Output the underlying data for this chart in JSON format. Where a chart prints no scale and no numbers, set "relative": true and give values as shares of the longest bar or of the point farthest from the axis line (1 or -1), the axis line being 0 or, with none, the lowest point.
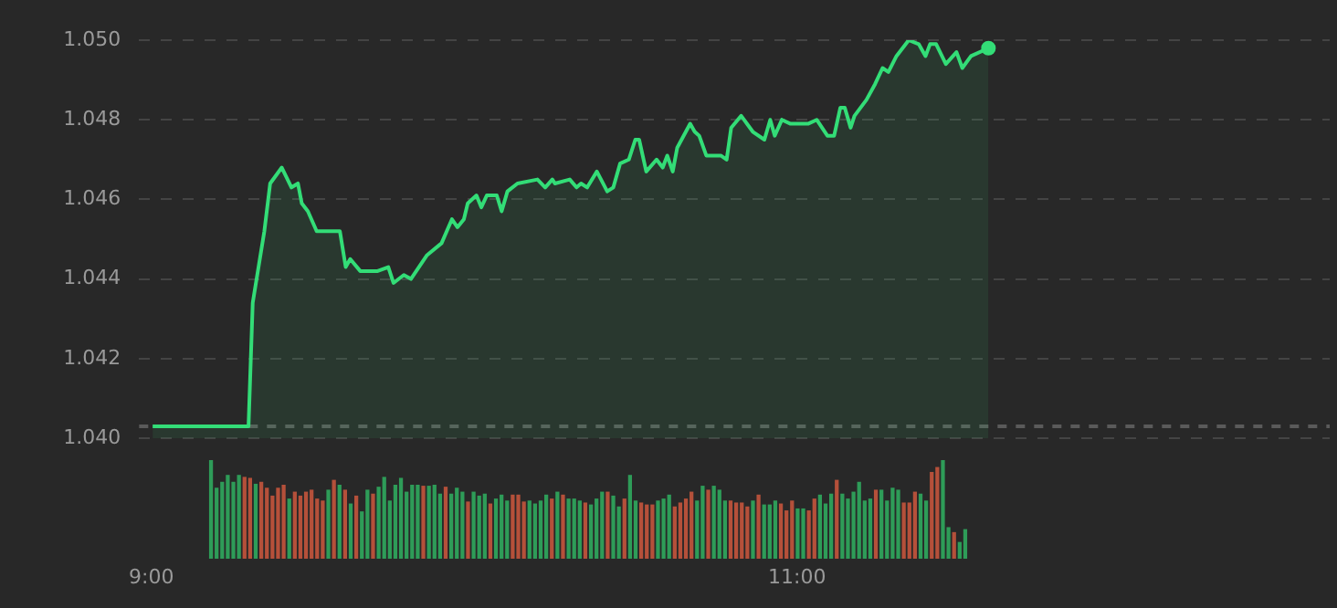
{
  "chart_data": [
    {
      "type": "area",
      "series": [
        {
          "color": "#33dd77",
          "x": [
            9.004,
            9.301,
            9.314,
            9.35,
            9.368,
            9.404,
            9.434,
            9.454,
            9.466,
            9.485,
            9.512,
            9.584,
            9.602,
            9.616,
            9.647,
            9.701,
            9.734,
            9.75,
            9.782,
            9.804,
            9.854,
            9.899,
            9.931,
            9.948,
            9.968,
            9.98,
            10.007,
            10.022,
            10.039,
            10.07,
            10.085,
            10.103,
            10.134,
            10.196,
            10.22,
            10.242,
            10.25,
            10.296,
            10.317,
            10.331,
            10.35,
            10.38,
            10.412,
            10.431,
            10.452,
            10.479,
            10.499,
            10.511,
            10.533,
            10.565,
            10.584,
            10.598,
            10.615,
            10.629,
            10.669,
            10.683,
            10.697,
            10.719,
            10.764,
            10.782,
            10.796,
            10.827,
            10.863,
            10.899,
            10.917,
            10.931,
            10.953,
            10.98,
            11.034,
            11.061,
            11.094,
            11.115,
            11.134,
            11.148,
            11.166,
            11.178,
            11.215,
            11.242,
            11.265,
            11.283,
            11.308,
            11.346,
            11.377,
            11.398,
            11.412,
            11.431,
            11.461,
            11.494,
            11.512,
            11.539,
            11.593
          ],
          "values": [
            1.0403,
            1.0403,
            1.0434,
            1.0452,
            1.0464,
            1.0468,
            1.0463,
            1.0464,
            1.0459,
            1.0457,
            1.0452,
            1.0452,
            1.0443,
            1.0445,
            1.0442,
            1.0442,
            1.0443,
            1.0439,
            1.0441,
            1.044,
            1.0446,
            1.0449,
            1.0455,
            1.0453,
            1.0455,
            1.0459,
            1.0461,
            1.0458,
            1.0461,
            1.0461,
            1.0457,
            1.0462,
            1.0464,
            1.0465,
            1.0463,
            1.0465,
            1.0464,
            1.0465,
            1.0463,
            1.0464,
            1.0463,
            1.0467,
            1.0462,
            1.0463,
            1.0469,
            1.047,
            1.0475,
            1.0475,
            1.0467,
            1.047,
            1.0468,
            1.0471,
            1.0467,
            1.0473,
            1.0479,
            1.0477,
            1.0476,
            1.0471,
            1.0471,
            1.047,
            1.0478,
            1.0481,
            1.0477,
            1.0475,
            1.048,
            1.0476,
            1.048,
            1.0479,
            1.0479,
            1.048,
            1.0476,
            1.0476,
            1.0483,
            1.0483,
            1.0478,
            1.0481,
            1.0485,
            1.0489,
            1.0493,
            1.0492,
            1.0496,
            1.05,
            1.0499,
            1.0496,
            1.0499,
            1.0499,
            1.0494,
            1.0497,
            1.0493,
            1.0496,
            1.0498
          ]
        }
      ],
      "xlim": [
        8.962,
        12.65
      ],
      "ylim": [
        1.04,
        1.05
      ],
      "yticks": [
        {
          "value": 1.04,
          "label": "1.040"
        },
        {
          "value": 1.042,
          "label": "1.042"
        },
        {
          "value": 1.044,
          "label": "1.044"
        },
        {
          "value": 1.046,
          "label": "1.046"
        },
        {
          "value": 1.048,
          "label": "1.048"
        },
        {
          "value": 1.05,
          "label": "1.050"
        }
      ],
      "xticks": [
        {
          "value": 9,
          "label": "9:00"
        },
        {
          "value": 11,
          "label": "11:00"
        }
      ],
      "grid": "y",
      "ref_lines": [
        {
          "axis": "y",
          "value": 1.0403,
          "color": "#5a5a5a",
          "line_style": "dashed"
        }
      ]
    },
    {
      "type": "bar",
      "relative": true,
      "categories": [
        null,
        null,
        null,
        null,
        null,
        null,
        null,
        null,
        null,
        null,
        null,
        null,
        null,
        null,
        null,
        null,
        null,
        null,
        null,
        null,
        null,
        null,
        null,
        null,
        null,
        null,
        null,
        null,
        null,
        null,
        null,
        null,
        null,
        null,
        null,
        null,
        null,
        null,
        null,
        null,
        null,
        null,
        null,
        null,
        null,
        null,
        null,
        null,
        null,
        null,
        null,
        null,
        null,
        null,
        null,
        null,
        null,
        null,
        null,
        null,
        null,
        null,
        null,
        null,
        null,
        null,
        null,
        null,
        null,
        null,
        null,
        null,
        null,
        null,
        null,
        null,
        null,
        null,
        null,
        null,
        null,
        null,
        null,
        null,
        null,
        null,
        null,
        null,
        null,
        null,
        null,
        null,
        null,
        null,
        null,
        null,
        null,
        null,
        null,
        null,
        null,
        null,
        null,
        null,
        null,
        null,
        null,
        null,
        null,
        null,
        null,
        null,
        null,
        null,
        null,
        null,
        null,
        null,
        null,
        null,
        null,
        null,
        null,
        null,
        null,
        null,
        null,
        null,
        null,
        null,
        null,
        null,
        null,
        null,
        null,
        null
      ],
      "values": [
        1,
        0.72,
        0.78,
        0.85,
        0.78,
        0.85,
        0.83,
        0.82,
        0.76,
        0.78,
        0.72,
        0.64,
        0.72,
        0.75,
        0.61,
        0.68,
        0.64,
        0.68,
        0.7,
        0.61,
        0.59,
        0.7,
        0.8,
        0.75,
        0.7,
        0.56,
        0.64,
        0.48,
        0.7,
        0.66,
        0.73,
        0.83,
        0.59,
        0.75,
        0.82,
        0.68,
        0.75,
        0.75,
        0.74,
        0.74,
        0.75,
        0.66,
        0.73,
        0.66,
        0.72,
        0.68,
        0.58,
        0.68,
        0.64,
        0.66,
        0.56,
        0.61,
        0.65,
        0.59,
        0.65,
        0.65,
        0.58,
        0.59,
        0.56,
        0.59,
        0.65,
        0.61,
        0.68,
        0.65,
        0.61,
        0.61,
        0.59,
        0.57,
        0.55,
        0.61,
        0.68,
        0.68,
        0.64,
        0.53,
        0.61,
        0.85,
        0.59,
        0.57,
        0.55,
        0.55,
        0.59,
        0.61,
        0.65,
        0.53,
        0.57,
        0.61,
        0.68,
        0.59,
        0.74,
        0.7,
        0.74,
        0.7,
        0.59,
        0.59,
        0.57,
        0.57,
        0.53,
        0.59,
        0.65,
        0.55,
        0.55,
        0.59,
        0.56,
        0.49,
        0.59,
        0.51,
        0.51,
        0.49,
        0.61,
        0.65,
        0.56,
        0.66,
        0.8,
        0.66,
        0.61,
        0.68,
        0.78,
        0.59,
        0.61,
        0.7,
        0.7,
        0.59,
        0.72,
        0.7,
        0.57,
        0.57,
        0.68,
        0.66,
        0.59,
        0.88,
        0.93,
        1,
        0.32,
        0.27,
        0.17,
        0.3
      ],
      "colors": [
        "#2e9c58",
        "#2e9c58",
        "#2e9c58",
        "#2e9c58",
        "#2e9c58",
        "#2e9c58",
        "#b5503a",
        "#b5503a",
        "#2e9c58",
        "#b5503a",
        "#b5503a",
        "#b5503a",
        "#b5503a",
        "#b5503a",
        "#2e9c58",
        "#b5503a",
        "#b5503a",
        "#b5503a",
        "#b5503a",
        "#b5503a",
        "#b5503a",
        "#2e9c58",
        "#b5503a",
        "#2e9c58",
        "#b5503a",
        "#2e9c58",
        "#b5503a",
        "#2e9c58",
        "#2e9c58",
        "#b5503a",
        "#2e9c58",
        "#2e9c58",
        "#2e9c58",
        "#2e9c58",
        "#2e9c58",
        "#2e9c58",
        "#2e9c58",
        "#2e9c58",
        "#b5503a",
        "#2e9c58",
        "#2e9c58",
        "#2e9c58",
        "#b5503a",
        "#2e9c58",
        "#2e9c58",
        "#2e9c58",
        "#b5503a",
        "#2e9c58",
        "#2e9c58",
        "#2e9c58",
        "#b5503a",
        "#2e9c58",
        "#2e9c58",
        "#2e9c58",
        "#b5503a",
        "#b5503a",
        "#b5503a",
        "#2e9c58",
        "#2e9c58",
        "#2e9c58",
        "#2e9c58",
        "#b5503a",
        "#2e9c58",
        "#b5503a",
        "#2e9c58",
        "#2e9c58",
        "#2e9c58",
        "#b5503a",
        "#2e9c58",
        "#2e9c58",
        "#2e9c58",
        "#b5503a",
        "#2e9c58",
        "#2e9c58",
        "#b5503a",
        "#2e9c58",
        "#2e9c58",
        "#b5503a",
        "#b5503a",
        "#b5503a",
        "#2e9c58",
        "#2e9c58",
        "#2e9c58",
        "#b5503a",
        "#b5503a",
        "#b5503a",
        "#b5503a",
        "#2e9c58",
        "#2e9c58",
        "#b5503a",
        "#2e9c58",
        "#2e9c58",
        "#2e9c58",
        "#b5503a",
        "#b5503a",
        "#b5503a",
        "#b5503a",
        "#2e9c58",
        "#b5503a",
        "#2e9c58",
        "#2e9c58",
        "#2e9c58",
        "#b5503a",
        "#b5503a",
        "#b5503a",
        "#2e9c58",
        "#2e9c58",
        "#b5503a",
        "#b5503a",
        "#2e9c58",
        "#2e9c58",
        "#2e9c58",
        "#b5503a",
        "#2e9c58",
        "#2e9c58",
        "#2e9c58",
        "#2e9c58",
        "#2e9c58",
        "#2e9c58",
        "#b5503a",
        "#2e9c58",
        "#2e9c58",
        "#2e9c58",
        "#2e9c58",
        "#b5503a",
        "#b5503a",
        "#b5503a",
        "#2e9c58",
        "#2e9c58",
        "#b5503a",
        "#b5503a",
        "#2e9c58",
        "#2e9c58",
        "#b5503a",
        "#2e9c58",
        "#2e9c58"
      ],
      "grid": false
    }
  ]
}
